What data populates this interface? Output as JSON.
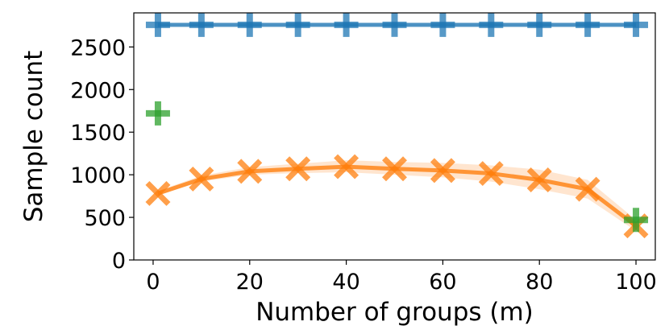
{
  "chart_data": {
    "type": "line",
    "title": "",
    "xlabel": "Number of groups (m)",
    "ylabel": "Sample count",
    "xlim": [
      -4,
      104
    ],
    "ylim": [
      0,
      2900
    ],
    "xticks": [
      0,
      20,
      40,
      60,
      80,
      100
    ],
    "yticks": [
      0,
      500,
      1000,
      1500,
      2000,
      2500
    ],
    "grid": false,
    "legend": "none",
    "series": [
      {
        "marker": "plus",
        "color": "#1f77b4",
        "x": [
          1,
          10,
          20,
          30,
          40,
          50,
          60,
          70,
          80,
          90,
          100
        ],
        "y": [
          2760,
          2760,
          2760,
          2760,
          2760,
          2760,
          2760,
          2760,
          2760,
          2760,
          2760
        ],
        "line": true
      },
      {
        "marker": "x",
        "color": "#ff7f0e",
        "x": [
          1,
          10,
          20,
          30,
          40,
          50,
          60,
          70,
          80,
          90,
          100
        ],
        "y": [
          780,
          950,
          1040,
          1070,
          1095,
          1070,
          1050,
          1015,
          940,
          830,
          400
        ],
        "lower": [
          760,
          920,
          1000,
          1020,
          1030,
          1000,
          970,
          920,
          830,
          720,
          340
        ],
        "upper": [
          810,
          990,
          1090,
          1130,
          1170,
          1150,
          1140,
          1110,
          1060,
          940,
          470
        ],
        "line": true
      },
      {
        "marker": "plus",
        "color": "#2ca02c",
        "x": [
          1,
          100
        ],
        "y": [
          1720,
          470
        ],
        "line": false
      }
    ]
  }
}
